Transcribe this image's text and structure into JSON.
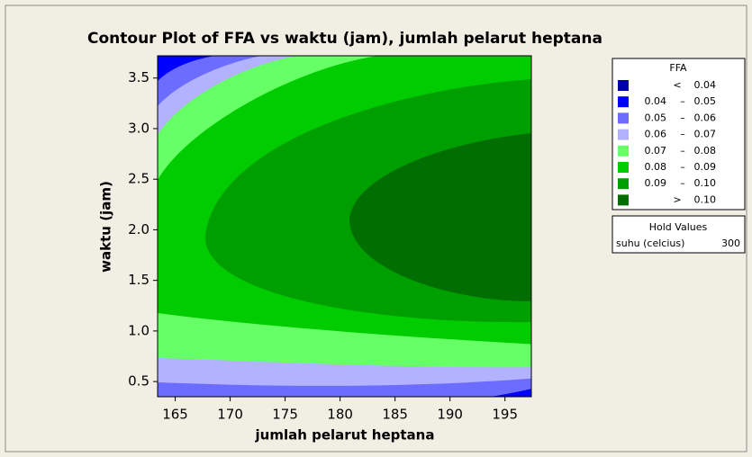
{
  "chart_data": {
    "type": "contour",
    "title": "Contour Plot of FFA vs waktu (jam), jumlah pelarut heptana",
    "xlabel": "jumlah pelarut heptana",
    "ylabel": "waktu (jam)",
    "xlim": [
      163.4,
      197.4
    ],
    "ylim": [
      0.35,
      3.72
    ],
    "xticks": [
      165,
      170,
      175,
      180,
      185,
      190,
      195
    ],
    "yticks": [
      0.5,
      {
        "value": 1,
        "label": "1.0"
      },
      1.5,
      {
        "value": 2,
        "label": "2.0"
      },
      2.5,
      {
        "value": 3,
        "label": "3.0"
      },
      3.5
    ],
    "legend_title": "FFA",
    "levels": [
      0.04,
      0.05,
      0.06,
      0.07,
      0.08,
      0.09,
      {
        "value": 0.1,
        "label": "0.10"
      }
    ],
    "colors": [
      "#0000a8",
      "#0000ff",
      "#6c6cff",
      "#b2b2ff",
      "#66ff66",
      "#00cc00",
      "#009f00",
      "#006e00"
    ],
    "below_sign": "<",
    "above_sign": ">",
    "range_sep": "–",
    "hold_title": "Hold Values",
    "hold": [
      {
        "name": "suhu (celcius)",
        "value": 300
      }
    ]
  }
}
